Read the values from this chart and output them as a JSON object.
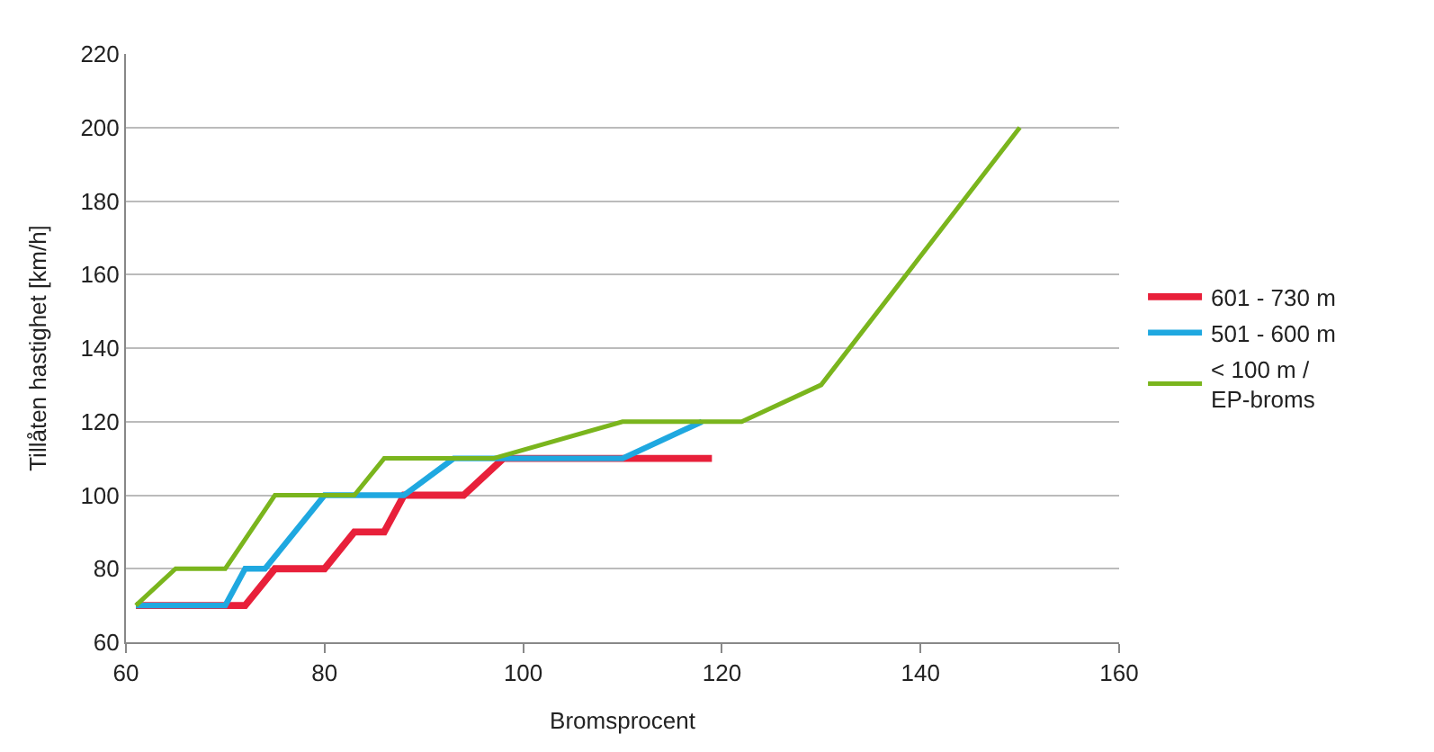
{
  "chart_data": {
    "type": "line",
    "xlabel": "Bromsprocent",
    "ylabel": "Tillåten hastighet [km/h]",
    "xlim": [
      60,
      160
    ],
    "xticks": [
      60,
      80,
      100,
      120,
      140,
      160
    ],
    "ylim": [
      60,
      220
    ],
    "yticks": [
      60,
      80,
      100,
      120,
      140,
      160,
      180,
      200,
      220
    ],
    "grid": "y",
    "legend": "right",
    "marker": "none",
    "line_style": "solid",
    "series": [
      {
        "name": "601 - 730 m",
        "color": "#e8203a",
        "x": [
          61,
          72,
          75,
          80,
          83,
          86,
          88,
          94,
          98,
          119
        ],
        "values": [
          70,
          70,
          80,
          80,
          90,
          90,
          100,
          100,
          110,
          110
        ]
      },
      {
        "name": "501 - 600 m",
        "color": "#1fa8e0",
        "x": [
          61,
          70,
          72,
          74,
          80,
          88,
          93,
          110,
          118
        ],
        "values": [
          70,
          70,
          80,
          80,
          100,
          100,
          110,
          110,
          120
        ]
      },
      {
        "name": "< 100 m /\nEP-broms",
        "color": "#7ab51d",
        "x": [
          61,
          65,
          70,
          75,
          83,
          86,
          97,
          110,
          122,
          130,
          150
        ],
        "values": [
          70,
          80,
          80,
          100,
          100,
          110,
          110,
          120,
          120,
          130,
          200
        ]
      }
    ]
  }
}
